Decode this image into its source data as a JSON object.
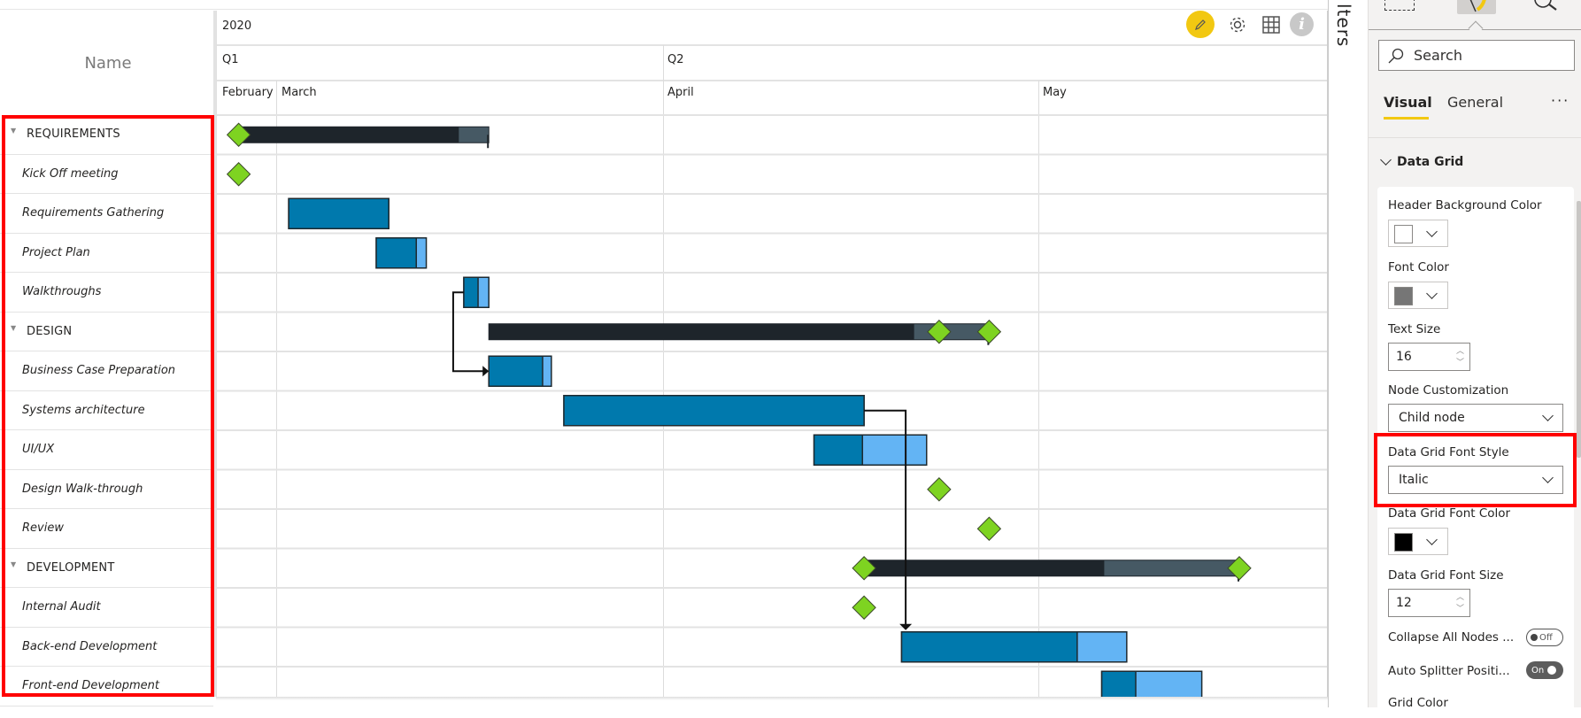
{
  "grid": {
    "name_header": "Name",
    "rows": [
      {
        "label": "REQUIREMENTS",
        "type": "group"
      },
      {
        "label": "Kick Off meeting",
        "type": "task"
      },
      {
        "label": "Requirements Gathering",
        "type": "task"
      },
      {
        "label": "Project Plan",
        "type": "task"
      },
      {
        "label": "Walkthroughs",
        "type": "task"
      },
      {
        "label": "DESIGN",
        "type": "group"
      },
      {
        "label": "Business Case Preparation",
        "type": "task"
      },
      {
        "label": "Systems architecture",
        "type": "task"
      },
      {
        "label": "UI/UX",
        "type": "task"
      },
      {
        "label": "Design Walk-through",
        "type": "task"
      },
      {
        "label": "Review",
        "type": "task"
      },
      {
        "label": "DEVELOPMENT",
        "type": "group"
      },
      {
        "label": "Internal Audit",
        "type": "task"
      },
      {
        "label": "Back-end Development",
        "type": "task"
      },
      {
        "label": "Front-end Development",
        "type": "task"
      }
    ]
  },
  "timeline": {
    "year": "2020",
    "quarters": [
      "Q1",
      "Q2"
    ],
    "months": [
      "February",
      "March",
      "April",
      "May"
    ]
  },
  "chart_data": {
    "type": "gantt",
    "tasks": [
      {
        "row": 0,
        "kind": "summary",
        "start": "2020-02-27",
        "end": "2020-03-18",
        "progress": 0.88,
        "milestones": [
          "2020-02-27"
        ]
      },
      {
        "row": 1,
        "kind": "milestone",
        "date": "2020-02-27"
      },
      {
        "row": 2,
        "kind": "task",
        "start": "2020-03-02",
        "end": "2020-03-10",
        "progress": 1.0
      },
      {
        "row": 3,
        "kind": "task",
        "start": "2020-03-09",
        "end": "2020-03-13",
        "progress": 0.8
      },
      {
        "row": 4,
        "kind": "task",
        "start": "2020-03-16",
        "end": "2020-03-18",
        "progress": 0.57
      },
      {
        "row": 5,
        "kind": "summary",
        "start": "2020-03-18",
        "end": "2020-04-27",
        "progress": 0.85,
        "milestones": [
          "2020-04-23",
          "2020-04-27"
        ]
      },
      {
        "row": 6,
        "kind": "task",
        "start": "2020-03-18",
        "end": "2020-03-23",
        "progress": 0.86
      },
      {
        "row": 7,
        "kind": "task",
        "start": "2020-03-24",
        "end": "2020-04-17",
        "progress": 1.0
      },
      {
        "row": 8,
        "kind": "task",
        "start": "2020-04-13",
        "end": "2020-04-22",
        "progress": 0.43
      },
      {
        "row": 9,
        "kind": "milestone",
        "date": "2020-04-23"
      },
      {
        "row": 10,
        "kind": "milestone",
        "date": "2020-04-27"
      },
      {
        "row": 11,
        "kind": "summary",
        "start": "2020-04-17",
        "end": "2020-05-17",
        "progress": 0.64,
        "milestones": [
          "2020-04-17",
          "2020-05-17"
        ]
      },
      {
        "row": 12,
        "kind": "milestone",
        "date": "2020-04-17"
      },
      {
        "row": 13,
        "kind": "task",
        "start": "2020-04-20",
        "end": "2020-05-08",
        "progress": 0.78
      },
      {
        "row": 14,
        "kind": "task",
        "start": "2020-05-06",
        "end": "2020-05-14",
        "progress": 0.34
      }
    ],
    "dependencies": [
      {
        "from": 4,
        "to": 6
      },
      {
        "from": 7,
        "to": 13
      }
    ],
    "colors": {
      "task": "#0079ad",
      "task_remaining": "#63b4f4",
      "summary": "#1e252b",
      "summary_remaining": "#465964",
      "milestone": "#7ed321"
    }
  },
  "toolbar": {
    "icons": [
      "edit-icon",
      "settings-icon",
      "grid-icon",
      "info-icon"
    ]
  },
  "filters_label": "lters",
  "format_pane": {
    "top_icons": [
      "build-visual-icon",
      "format-visual-icon",
      "analytics-icon"
    ],
    "search_placeholder": "Search",
    "tabs": [
      "Visual",
      "General"
    ],
    "more": "···",
    "section": "Data Grid",
    "header_bg_label": "Header Background Color",
    "header_bg_color": "#ffffff",
    "font_color_label": "Font Color",
    "font_color": "#767676",
    "text_size_label": "Text Size",
    "text_size": "16",
    "node_label": "Node Customization",
    "node_value": "Child node",
    "font_style_label": "Data Grid Font Style",
    "font_style_value": "Italic",
    "grid_font_color_label": "Data Grid Font Color",
    "grid_font_color": "#000000",
    "grid_font_size_label": "Data Grid Font Size",
    "grid_font_size": "12",
    "collapse_label": "Collapse All Nodes ...",
    "collapse_value": "Off",
    "splitter_label": "Auto Splitter Positi...",
    "splitter_value": "On",
    "grid_color_label": "Grid Color"
  }
}
